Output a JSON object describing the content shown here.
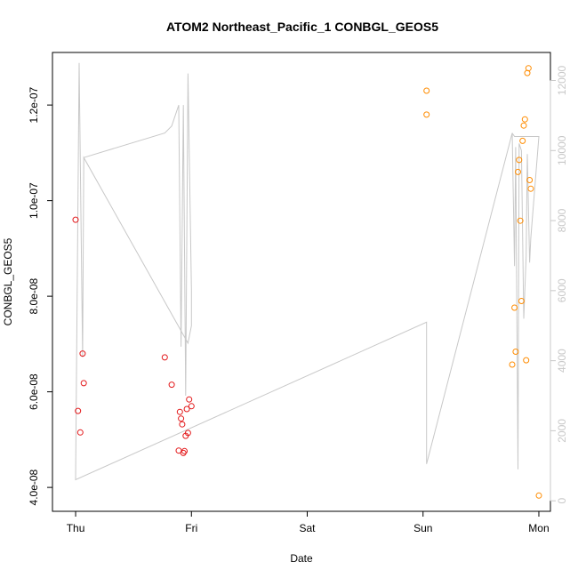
{
  "chart_data": {
    "type": "scatter",
    "title": "ATOM2 Northeast_Pacific_1 CONBGL_GEOS5",
    "xlabel": "Date",
    "ylabel": "CONBGL_GEOS5",
    "x_ticks": [
      {
        "label": "Thu",
        "day": 0
      },
      {
        "label": "Fri",
        "day": 1
      },
      {
        "label": "Sat",
        "day": 2
      },
      {
        "label": "Sun",
        "day": 3
      },
      {
        "label": "Mon",
        "day": 4
      }
    ],
    "xlim": [
      -0.2,
      4.1
    ],
    "y_ticks": [
      {
        "label": "4.0e-08",
        "value": 4e-08
      },
      {
        "label": "6.0e-08",
        "value": 6e-08
      },
      {
        "label": "8.0e-08",
        "value": 8e-08
      },
      {
        "label": "1.0e-07",
        "value": 1e-07
      },
      {
        "label": "1.2e-07",
        "value": 1.2e-07
      }
    ],
    "ylim": [
      3.5e-08,
      1.31e-07
    ],
    "y2_ticks": [
      {
        "label": "0",
        "value": 0
      },
      {
        "label": "2000",
        "value": 2000
      },
      {
        "label": "4000",
        "value": 4000
      },
      {
        "label": "6000",
        "value": 6000
      },
      {
        "label": "8000",
        "value": 8000
      },
      {
        "label": "10000",
        "value": 10000
      },
      {
        "label": "12000",
        "value": 12000
      }
    ],
    "y2lim": [
      -300,
      12800
    ],
    "series": [
      {
        "color": "#e31a1c",
        "marker": "open-circle",
        "x": [
          0.0,
          0.02,
          0.04,
          0.06,
          0.07,
          0.77,
          0.83,
          0.89,
          0.9,
          0.91,
          0.92,
          0.93,
          0.94,
          0.95,
          0.96,
          0.97,
          0.98,
          1.0
        ],
        "y": [
          9.6e-08,
          5.6e-08,
          5.15e-08,
          6.8e-08,
          6.18e-08,
          6.72e-08,
          6.15e-08,
          4.77e-08,
          5.58e-08,
          5.44e-08,
          5.32e-08,
          4.72e-08,
          4.76e-08,
          5.08e-08,
          5.64e-08,
          5.14e-08,
          5.84e-08,
          5.7e-08
        ]
      },
      {
        "color": "#ff8c00",
        "marker": "open-circle",
        "x": [
          3.03,
          3.03,
          3.77,
          3.79,
          3.8,
          3.82,
          3.83,
          3.84,
          3.85,
          3.86,
          3.87,
          3.88,
          3.89,
          3.9,
          3.91,
          3.92,
          3.93,
          4.0
        ],
        "y": [
          1.23e-07,
          1.18e-07,
          6.57e-08,
          7.76e-08,
          6.84e-08,
          1.06e-07,
          1.085e-07,
          9.58e-08,
          7.9e-08,
          1.125e-07,
          1.157e-07,
          1.17e-07,
          6.66e-08,
          1.267e-07,
          1.277e-07,
          1.043e-07,
          1.025e-07,
          3.83e-08
        ]
      },
      {
        "color": "#c8c8c8",
        "marker": "line",
        "axis": "right",
        "x": [
          0.0,
          0.03,
          0.06,
          0.07,
          0.77,
          0.83,
          0.89,
          0.91,
          0.93,
          0.95,
          0.97,
          1.0,
          1.0,
          0.97,
          0.07,
          0.06,
          0.03,
          0.0,
          3.03,
          3.03,
          3.77,
          3.79,
          3.8,
          3.82,
          3.83,
          3.85,
          3.87,
          3.89,
          3.9,
          3.92,
          3.93,
          4.0,
          3.79,
          3.77
        ],
        "y": [
          600,
          12500,
          4100,
          9800,
          10500,
          10700,
          11300,
          4400,
          11300,
          3000,
          12200,
          6000,
          5000,
          4500,
          9800,
          4100,
          12500,
          600,
          5100,
          1050,
          10500,
          6700,
          10100,
          900,
          10200,
          10000,
          5200,
          7000,
          9900,
          6800,
          7500,
          10400,
          10400,
          10500
        ]
      }
    ]
  }
}
